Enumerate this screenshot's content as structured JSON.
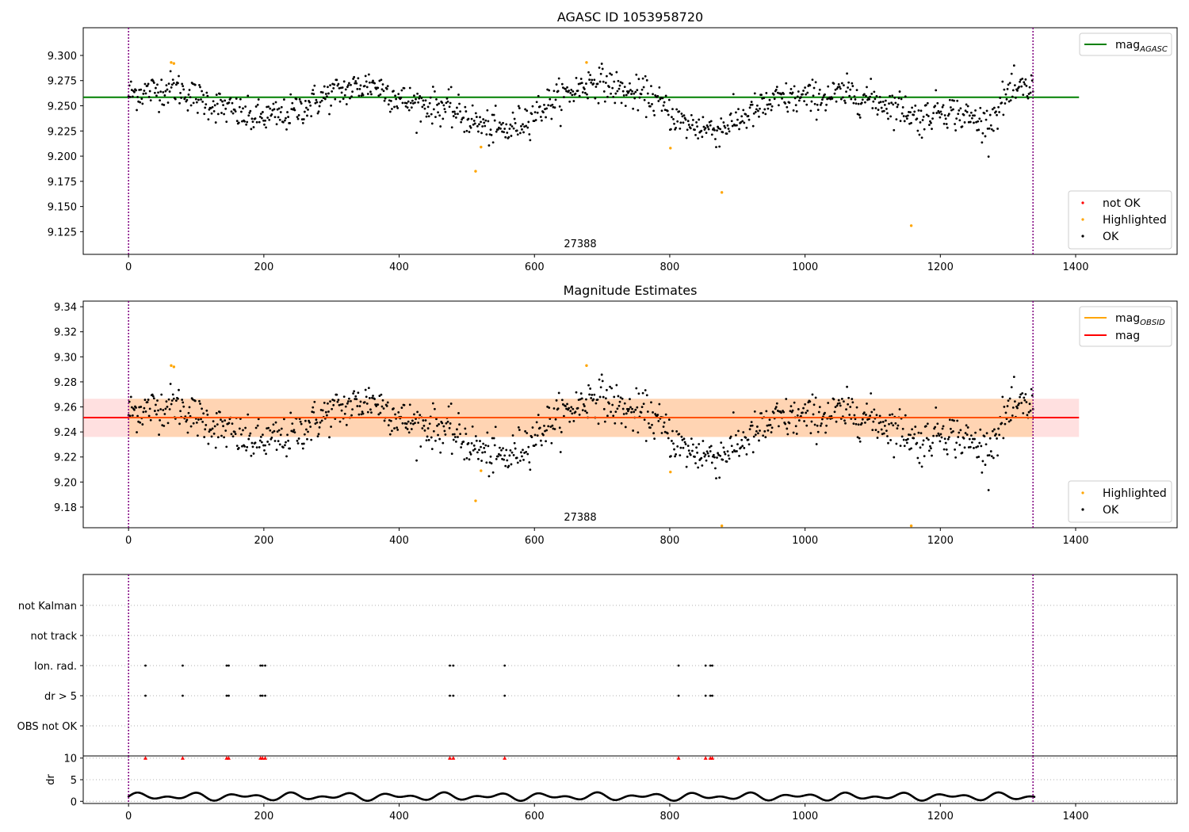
{
  "chart_data": [
    {
      "type": "scatter",
      "title": "AGASC ID 1053958720",
      "xlabel": "",
      "ylabel": "",
      "xlim": [
        -67,
        1550
      ],
      "ylim": [
        9.1025,
        9.3275
      ],
      "xticks": [
        0,
        200,
        400,
        600,
        800,
        1000,
        1200,
        1400
      ],
      "xtick_labels": [
        "0",
        "200",
        "400",
        "600",
        "800",
        "1000",
        "1200",
        "1400"
      ],
      "yticks": [
        9.125,
        9.15,
        9.175,
        9.2,
        9.225,
        9.25,
        9.275,
        9.3
      ],
      "ytick_labels": [
        "9.125",
        "9.150",
        "9.175",
        "9.200",
        "9.225",
        "9.250",
        "9.275",
        "9.300"
      ],
      "obs_boundaries": [
        0,
        1337
      ],
      "obs_label": "27388",
      "mag_agasc": 9.2585,
      "mag_agasc_xrange": [
        -67,
        1405
      ],
      "n_ok_points": 1100,
      "ok_trend_knots": [
        [
          0,
          9.262
        ],
        [
          70,
          9.268
        ],
        [
          100,
          9.258
        ],
        [
          180,
          9.238
        ],
        [
          230,
          9.24
        ],
        [
          300,
          9.262
        ],
        [
          360,
          9.272
        ],
        [
          410,
          9.254
        ],
        [
          470,
          9.248
        ],
        [
          530,
          9.228
        ],
        [
          560,
          9.225
        ],
        [
          620,
          9.252
        ],
        [
          690,
          9.276
        ],
        [
          740,
          9.262
        ],
        [
          770,
          9.26
        ],
        [
          820,
          9.232
        ],
        [
          870,
          9.226
        ],
        [
          900,
          9.236
        ],
        [
          960,
          9.256
        ],
        [
          1010,
          9.258
        ],
        [
          1070,
          9.262
        ],
        [
          1150,
          9.246
        ],
        [
          1170,
          9.236
        ],
        [
          1200,
          9.248
        ],
        [
          1270,
          9.232
        ],
        [
          1300,
          9.262
        ],
        [
          1337,
          9.268
        ]
      ],
      "ok_scatter": 0.012,
      "highlighted": [
        [
          63,
          9.293
        ],
        [
          67,
          9.292
        ],
        [
          513,
          9.185
        ],
        [
          521,
          9.209
        ],
        [
          677,
          9.293
        ],
        [
          801,
          9.208
        ],
        [
          877,
          9.164
        ],
        [
          1157,
          9.131
        ]
      ],
      "legend_lines": [
        {
          "label": "mag",
          "sub": "AGASC",
          "color": "#008000"
        }
      ],
      "legend_points": [
        {
          "label": "not OK",
          "color": "#ff0000"
        },
        {
          "label": "Highlighted",
          "color": "#ffa500"
        },
        {
          "label": "OK",
          "color": "#000000"
        }
      ]
    },
    {
      "type": "scatter",
      "title": "Magnitude Estimates",
      "xlabel": "",
      "ylabel": "",
      "xlim": [
        -67,
        1550
      ],
      "ylim": [
        9.1635,
        9.3445
      ],
      "xticks": [
        0,
        200,
        400,
        600,
        800,
        1000,
        1200,
        1400
      ],
      "xtick_labels": [
        "0",
        "200",
        "400",
        "600",
        "800",
        "1000",
        "1200",
        "1400"
      ],
      "yticks": [
        9.18,
        9.2,
        9.22,
        9.24,
        9.26,
        9.28,
        9.3,
        9.32,
        9.34
      ],
      "ytick_labels": [
        "9.18",
        "9.20",
        "9.22",
        "9.24",
        "9.26",
        "9.28",
        "9.30",
        "9.32",
        "9.34"
      ],
      "obs_boundaries": [
        0,
        1337
      ],
      "obs_label": "27388",
      "mag": 9.2515,
      "mag_band": [
        9.236,
        9.2665
      ],
      "mag_band_xrange": [
        -67,
        1405
      ],
      "mag_obsid_band": [
        9.236,
        9.2665
      ],
      "mag_obsid_xrange": [
        0,
        1337
      ],
      "highlighted": [
        [
          63,
          9.293
        ],
        [
          67,
          9.292
        ],
        [
          513,
          9.185
        ],
        [
          521,
          9.209
        ],
        [
          677,
          9.293
        ],
        [
          801,
          9.208
        ],
        [
          877,
          9.165
        ],
        [
          1157,
          9.165
        ]
      ],
      "legend_lines": [
        {
          "label": "mag",
          "sub": "OBSID",
          "color": "#ffa500"
        },
        {
          "label": "mag",
          "sub": "",
          "color": "#ff0000"
        }
      ],
      "legend_points": [
        {
          "label": "Highlighted",
          "color": "#ffa500"
        },
        {
          "label": "OK",
          "color": "#000000"
        }
      ]
    },
    {
      "type": "scatter",
      "title": "",
      "ylabel": "",
      "categories": [
        "not Kalman",
        "not track",
        "Ion. rad.",
        "dr > 5",
        "OBS not OK"
      ],
      "xlim": [
        -67,
        1550
      ],
      "obs_boundaries": [
        0,
        1337
      ],
      "flags": {
        "Ion. rad.": [
          25,
          80,
          145,
          148,
          195,
          198,
          202,
          475,
          480,
          556,
          813,
          853,
          860,
          863
        ],
        "dr > 5": [
          25,
          80,
          145,
          148,
          195,
          198,
          202,
          475,
          480,
          556,
          813,
          853,
          860,
          863
        ]
      }
    },
    {
      "type": "scatter",
      "title": "",
      "xlabel": "",
      "ylabel": "dr",
      "xlim": [
        -67,
        1550
      ],
      "ylim": [
        -0.5,
        10.5
      ],
      "yticks": [
        0,
        5,
        10
      ],
      "ytick_labels": [
        "0",
        "5",
        "10"
      ],
      "xticks": [
        0,
        200,
        400,
        600,
        800,
        1000,
        1200,
        1400
      ],
      "xtick_labels": [
        "0",
        "200",
        "400",
        "600",
        "800",
        "1000",
        "1200",
        "1400"
      ],
      "obs_boundaries": [
        0,
        1337
      ],
      "dr_typical_range": [
        0.0,
        2.2
      ],
      "dr_over_10": [
        25,
        80,
        145,
        148,
        195,
        198,
        202,
        475,
        480,
        556,
        813,
        853,
        860,
        863
      ]
    }
  ]
}
